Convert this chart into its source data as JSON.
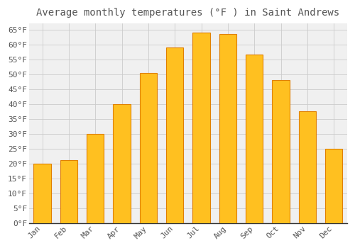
{
  "title": "Average monthly temperatures (°F ) in Saint Andrews",
  "months": [
    "Jan",
    "Feb",
    "Mar",
    "Apr",
    "May",
    "Jun",
    "Jul",
    "Aug",
    "Sep",
    "Oct",
    "Nov",
    "Dec"
  ],
  "values": [
    20,
    21,
    30,
    40,
    50.5,
    59,
    64,
    63.5,
    56.5,
    48,
    37.5,
    25
  ],
  "bar_color_face": "#FFC020",
  "bar_color_edge": "#E08000",
  "background_color": "#FFFFFF",
  "plot_bg_color": "#F0F0F0",
  "grid_color": "#CCCCCC",
  "text_color": "#555555",
  "ylim": [
    0,
    67
  ],
  "yticks": [
    0,
    5,
    10,
    15,
    20,
    25,
    30,
    35,
    40,
    45,
    50,
    55,
    60,
    65
  ],
  "title_fontsize": 10,
  "tick_fontsize": 8,
  "bar_width": 0.65
}
